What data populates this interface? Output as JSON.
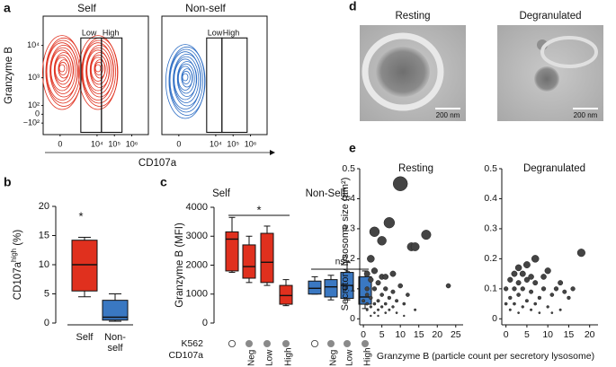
{
  "chart_data": [
    {
      "type": "contour",
      "panel": "a",
      "title": "Self",
      "color": "#e0301e",
      "ylabel": "Granzyme B",
      "xlabel": "CD107a",
      "xscale": "asinh",
      "yscale": "asinh",
      "xlim": [
        -700,
        9000000
      ],
      "ylim": [
        -300,
        80000
      ],
      "xticks": [
        0,
        {
          "value": 10000,
          "label": "10⁴"
        },
        {
          "value": 100000,
          "label": "10⁵"
        },
        {
          "value": 1000000,
          "label": "10⁶"
        }
      ],
      "yticks": [
        {
          "value": -100,
          "label": "−10²"
        },
        0,
        {
          "value": 100,
          "label": "10²"
        },
        {
          "value": 1000,
          "label": "10³"
        },
        {
          "value": 10000,
          "label": "10⁴"
        }
      ],
      "gates": [
        {
          "label": "Low",
          "x": [
            1160,
            18000
          ],
          "y": [
            -250,
            17000
          ]
        },
        {
          "label": "High",
          "x": [
            18000,
            273000
          ],
          "y": [
            -250,
            17000
          ]
        }
      ]
    },
    {
      "type": "contour",
      "title": "Non-self",
      "color": "#2b6cc4",
      "xscale": "asinh",
      "yscale": "asinh",
      "xlim": [
        -700,
        9000000
      ],
      "ylim": [
        -300,
        80000
      ],
      "xticks": [
        0,
        {
          "value": 10000,
          "label": "10⁴"
        },
        {
          "value": 100000,
          "label": "10⁵"
        },
        {
          "value": 1000000,
          "label": "10⁶"
        }
      ],
      "gates": [
        {
          "label": "Low",
          "x": [
            3000,
            22700
          ],
          "y": [
            -250,
            17000
          ]
        },
        {
          "label": "High",
          "x": [
            22700,
            640000
          ],
          "y": [
            -250,
            17000
          ]
        }
      ]
    },
    {
      "type": "box",
      "panel": "b",
      "ylabel": [
        "CD107a",
        "high",
        " (%)"
      ],
      "ylim": [
        0,
        20
      ],
      "yticks": [
        0,
        5,
        10,
        15,
        20
      ],
      "categories": [
        [
          "Self"
        ],
        [
          "Non-",
          "self"
        ]
      ],
      "boxes": [
        {
          "color": "#e0301e",
          "whislo": 4.5,
          "q1": 5.5,
          "med": 10,
          "q3": 14.2,
          "whishi": 14.7
        },
        {
          "color": "#3a78c2",
          "whislo": 0.3,
          "q1": 0.5,
          "med": 1.0,
          "q3": 3.9,
          "whishi": 5
        }
      ],
      "annotations": [
        {
          "text": "*"
        }
      ]
    },
    {
      "type": "box",
      "panel": "c",
      "ylabel": [
        "Granzyme B (MFI)"
      ],
      "ylim": [
        0,
        4000
      ],
      "yticks": [
        0,
        1000,
        2000,
        3000,
        4000
      ],
      "row_labels": [
        "K562",
        "CD107a"
      ],
      "k562": [
        false,
        true,
        true,
        true,
        false,
        true,
        true,
        true
      ],
      "categories": [
        null,
        "Neg",
        "Low",
        "High",
        null,
        "Neg",
        "Low",
        "High"
      ],
      "series": [
        {
          "name": "Self",
          "color": "#e0301e",
          "boxes": [
            {
              "whislo": 1750,
              "q1": 1800,
              "med": 2900,
              "q3": 3150,
              "whishi": 3650
            },
            {
              "whislo": 1400,
              "q1": 1550,
              "med": 1950,
              "q3": 2700,
              "whishi": 3000
            },
            {
              "whislo": 1300,
              "q1": 1400,
              "med": 2100,
              "q3": 3100,
              "whishi": 3350
            },
            {
              "whislo": 600,
              "q1": 650,
              "med": 950,
              "q3": 1300,
              "whishi": 1500
            }
          ]
        },
        {
          "name": "Non-Self",
          "color": "#3a78c2",
          "boxes": [
            {
              "whislo": 1000,
              "q1": 1000,
              "med": 1200,
              "q3": 1450,
              "whishi": 1600
            },
            {
              "whislo": 800,
              "q1": 900,
              "med": 1250,
              "q3": 1500,
              "whishi": 1650
            },
            {
              "whislo": 800,
              "q1": 850,
              "med": 1300,
              "q3": 1750,
              "whishi": 2100
            },
            {
              "whislo": 500,
              "q1": 650,
              "med": 900,
              "q3": 1600,
              "whishi": 1800
            }
          ]
        }
      ],
      "annotations": [
        {
          "text": "*",
          "between": [
            0,
            3
          ]
        },
        {
          "text": "ns",
          "between": [
            4,
            7
          ]
        }
      ]
    },
    {
      "type": "micrograph",
      "panel": "d",
      "titles": [
        "Resting",
        "Degranulated"
      ],
      "scale_bar_labels": [
        "200 nm",
        "200 nm"
      ]
    },
    {
      "type": "scatter",
      "panel": "e",
      "title": "Resting",
      "ylabel": "Secretory lysosome size (µm²)",
      "xlabel": "Granzyme B (particle count per secretory lysosome)",
      "color": "#444444",
      "xlim": [
        -1,
        27
      ],
      "ylim": [
        -0.02,
        0.5
      ],
      "xticks": [
        0,
        5,
        10,
        15,
        20,
        25
      ],
      "yticks": [
        0,
        0.1,
        0.2,
        0.3,
        0.4,
        0.5
      ],
      "x": [
        1,
        1,
        2,
        2,
        3,
        3,
        3,
        4,
        4,
        4,
        5,
        5,
        6,
        6,
        6,
        7,
        7,
        8,
        8,
        9,
        9,
        10,
        11,
        12,
        14,
        2,
        1,
        3,
        5,
        2,
        3,
        7,
        10,
        13,
        14,
        17,
        5,
        23,
        1,
        2,
        4,
        6,
        11,
        8,
        0,
        1
      ],
      "values": [
        0.03,
        0.05,
        0.04,
        0.07,
        0.02,
        0.05,
        0.1,
        0.03,
        0.06,
        0.12,
        0.04,
        0.08,
        0.02,
        0.05,
        0.1,
        0.03,
        0.07,
        0.04,
        0.09,
        0.02,
        0.06,
        0.11,
        0.05,
        0.08,
        0.03,
        0.13,
        0.15,
        0.16,
        0.14,
        0.2,
        0.29,
        0.32,
        0.45,
        0.24,
        0.24,
        0.28,
        0.26,
        0.11,
        0.1,
        0.01,
        0.01,
        0.14,
        0.01,
        0.15,
        0.06,
        0.08
      ]
    },
    {
      "type": "scatter",
      "title": "Degranulated",
      "color": "#444444",
      "xlim": [
        -1,
        22
      ],
      "ylim": [
        -0.02,
        0.5
      ],
      "xticks": [
        0,
        5,
        10,
        15,
        20
      ],
      "yticks": [
        0,
        0.1,
        0.2,
        0.3,
        0.4,
        0.5
      ],
      "x": [
        1,
        1,
        2,
        2,
        3,
        3,
        3,
        4,
        4,
        5,
        5,
        6,
        6,
        7,
        7,
        8,
        8,
        9,
        10,
        11,
        12,
        13,
        15,
        16,
        1,
        2,
        3,
        5,
        7,
        10,
        13,
        18,
        4,
        6,
        9,
        0,
        0,
        11,
        14
      ],
      "values": [
        0.03,
        0.07,
        0.05,
        0.1,
        0.02,
        0.08,
        0.12,
        0.04,
        0.1,
        0.06,
        0.13,
        0.03,
        0.09,
        0.05,
        0.12,
        0.07,
        0.02,
        0.1,
        0.04,
        0.08,
        0.1,
        0.03,
        0.07,
        0.1,
        0.13,
        0.15,
        0.17,
        0.18,
        0.2,
        0.16,
        0.12,
        0.22,
        0.15,
        0.14,
        0.14,
        0.1,
        0.05,
        0.02,
        0.09
      ]
    }
  ]
}
